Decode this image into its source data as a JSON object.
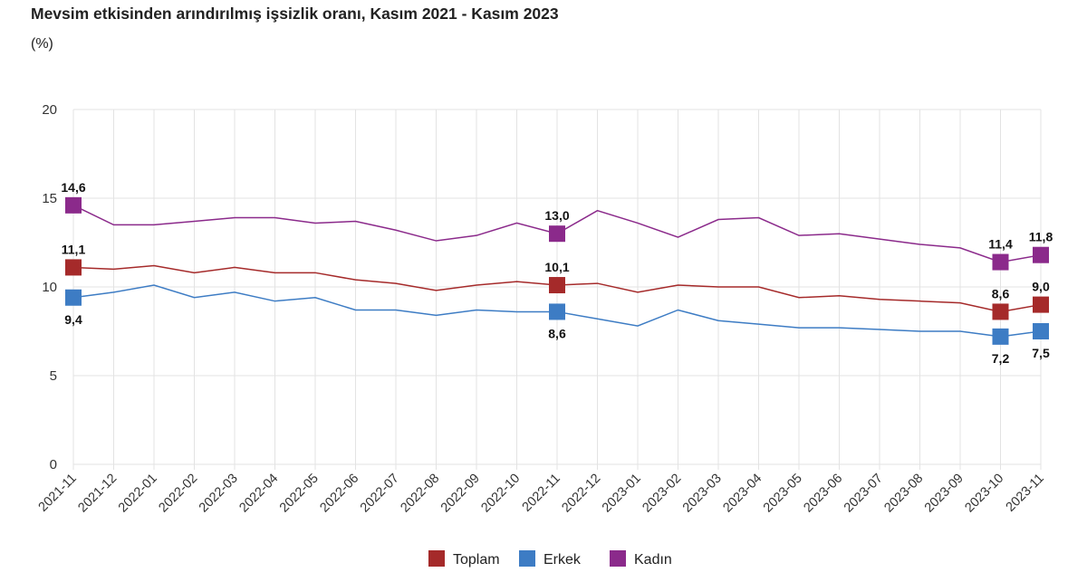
{
  "chart_data": {
    "type": "line",
    "title": "Mevsim etkisinden arındırılmış işsizlik oranı, Kasım 2021 - Kasım 2023",
    "unit": "(%)",
    "x": [
      "2021-11",
      "2021-12",
      "2022-01",
      "2022-02",
      "2022-03",
      "2022-04",
      "2022-05",
      "2022-06",
      "2022-07",
      "2022-08",
      "2022-09",
      "2022-10",
      "2022-11",
      "2022-12",
      "2023-01",
      "2023-02",
      "2023-03",
      "2023-04",
      "2023-05",
      "2023-06",
      "2023-07",
      "2023-08",
      "2023-09",
      "2023-10",
      "2023-11"
    ],
    "ylim": [
      0,
      20
    ],
    "yticks": [
      0,
      5,
      10,
      15,
      20
    ],
    "grid": true,
    "legend": "bottom-center",
    "series": [
      {
        "name": "Toplam",
        "color": "#a52a2a",
        "label_pos": "above",
        "values": [
          11.1,
          11.0,
          11.2,
          10.8,
          11.1,
          10.8,
          10.8,
          10.4,
          10.2,
          9.8,
          10.1,
          10.3,
          10.1,
          10.2,
          9.7,
          10.1,
          10.0,
          10.0,
          9.4,
          9.5,
          9.3,
          9.2,
          9.1,
          8.6,
          9.0
        ],
        "labels": {
          "0": "11,1",
          "12": "10,1",
          "23": "8,6",
          "24": "9,0"
        }
      },
      {
        "name": "Erkek",
        "color": "#3d7cc4",
        "label_pos": "below",
        "values": [
          9.4,
          9.7,
          10.1,
          9.4,
          9.7,
          9.2,
          9.4,
          8.7,
          8.7,
          8.4,
          8.7,
          8.6,
          8.6,
          8.2,
          7.8,
          8.7,
          8.1,
          7.9,
          7.7,
          7.7,
          7.6,
          7.5,
          7.5,
          7.2,
          7.5
        ],
        "labels": {
          "0": "9,4",
          "12": "8,6",
          "23": "7,2",
          "24": "7,5"
        }
      },
      {
        "name": "Kadın",
        "color": "#8b2a8b",
        "label_pos": "above",
        "values": [
          14.6,
          13.5,
          13.5,
          13.7,
          13.9,
          13.9,
          13.6,
          13.7,
          13.2,
          12.6,
          12.9,
          13.6,
          13.0,
          14.3,
          13.6,
          12.8,
          13.8,
          13.9,
          12.9,
          13.0,
          12.7,
          12.4,
          12.2,
          11.4,
          11.8
        ],
        "labels": {
          "0": "14,6",
          "12": "13,0",
          "23": "11,4",
          "24": "11,8"
        }
      }
    ]
  }
}
